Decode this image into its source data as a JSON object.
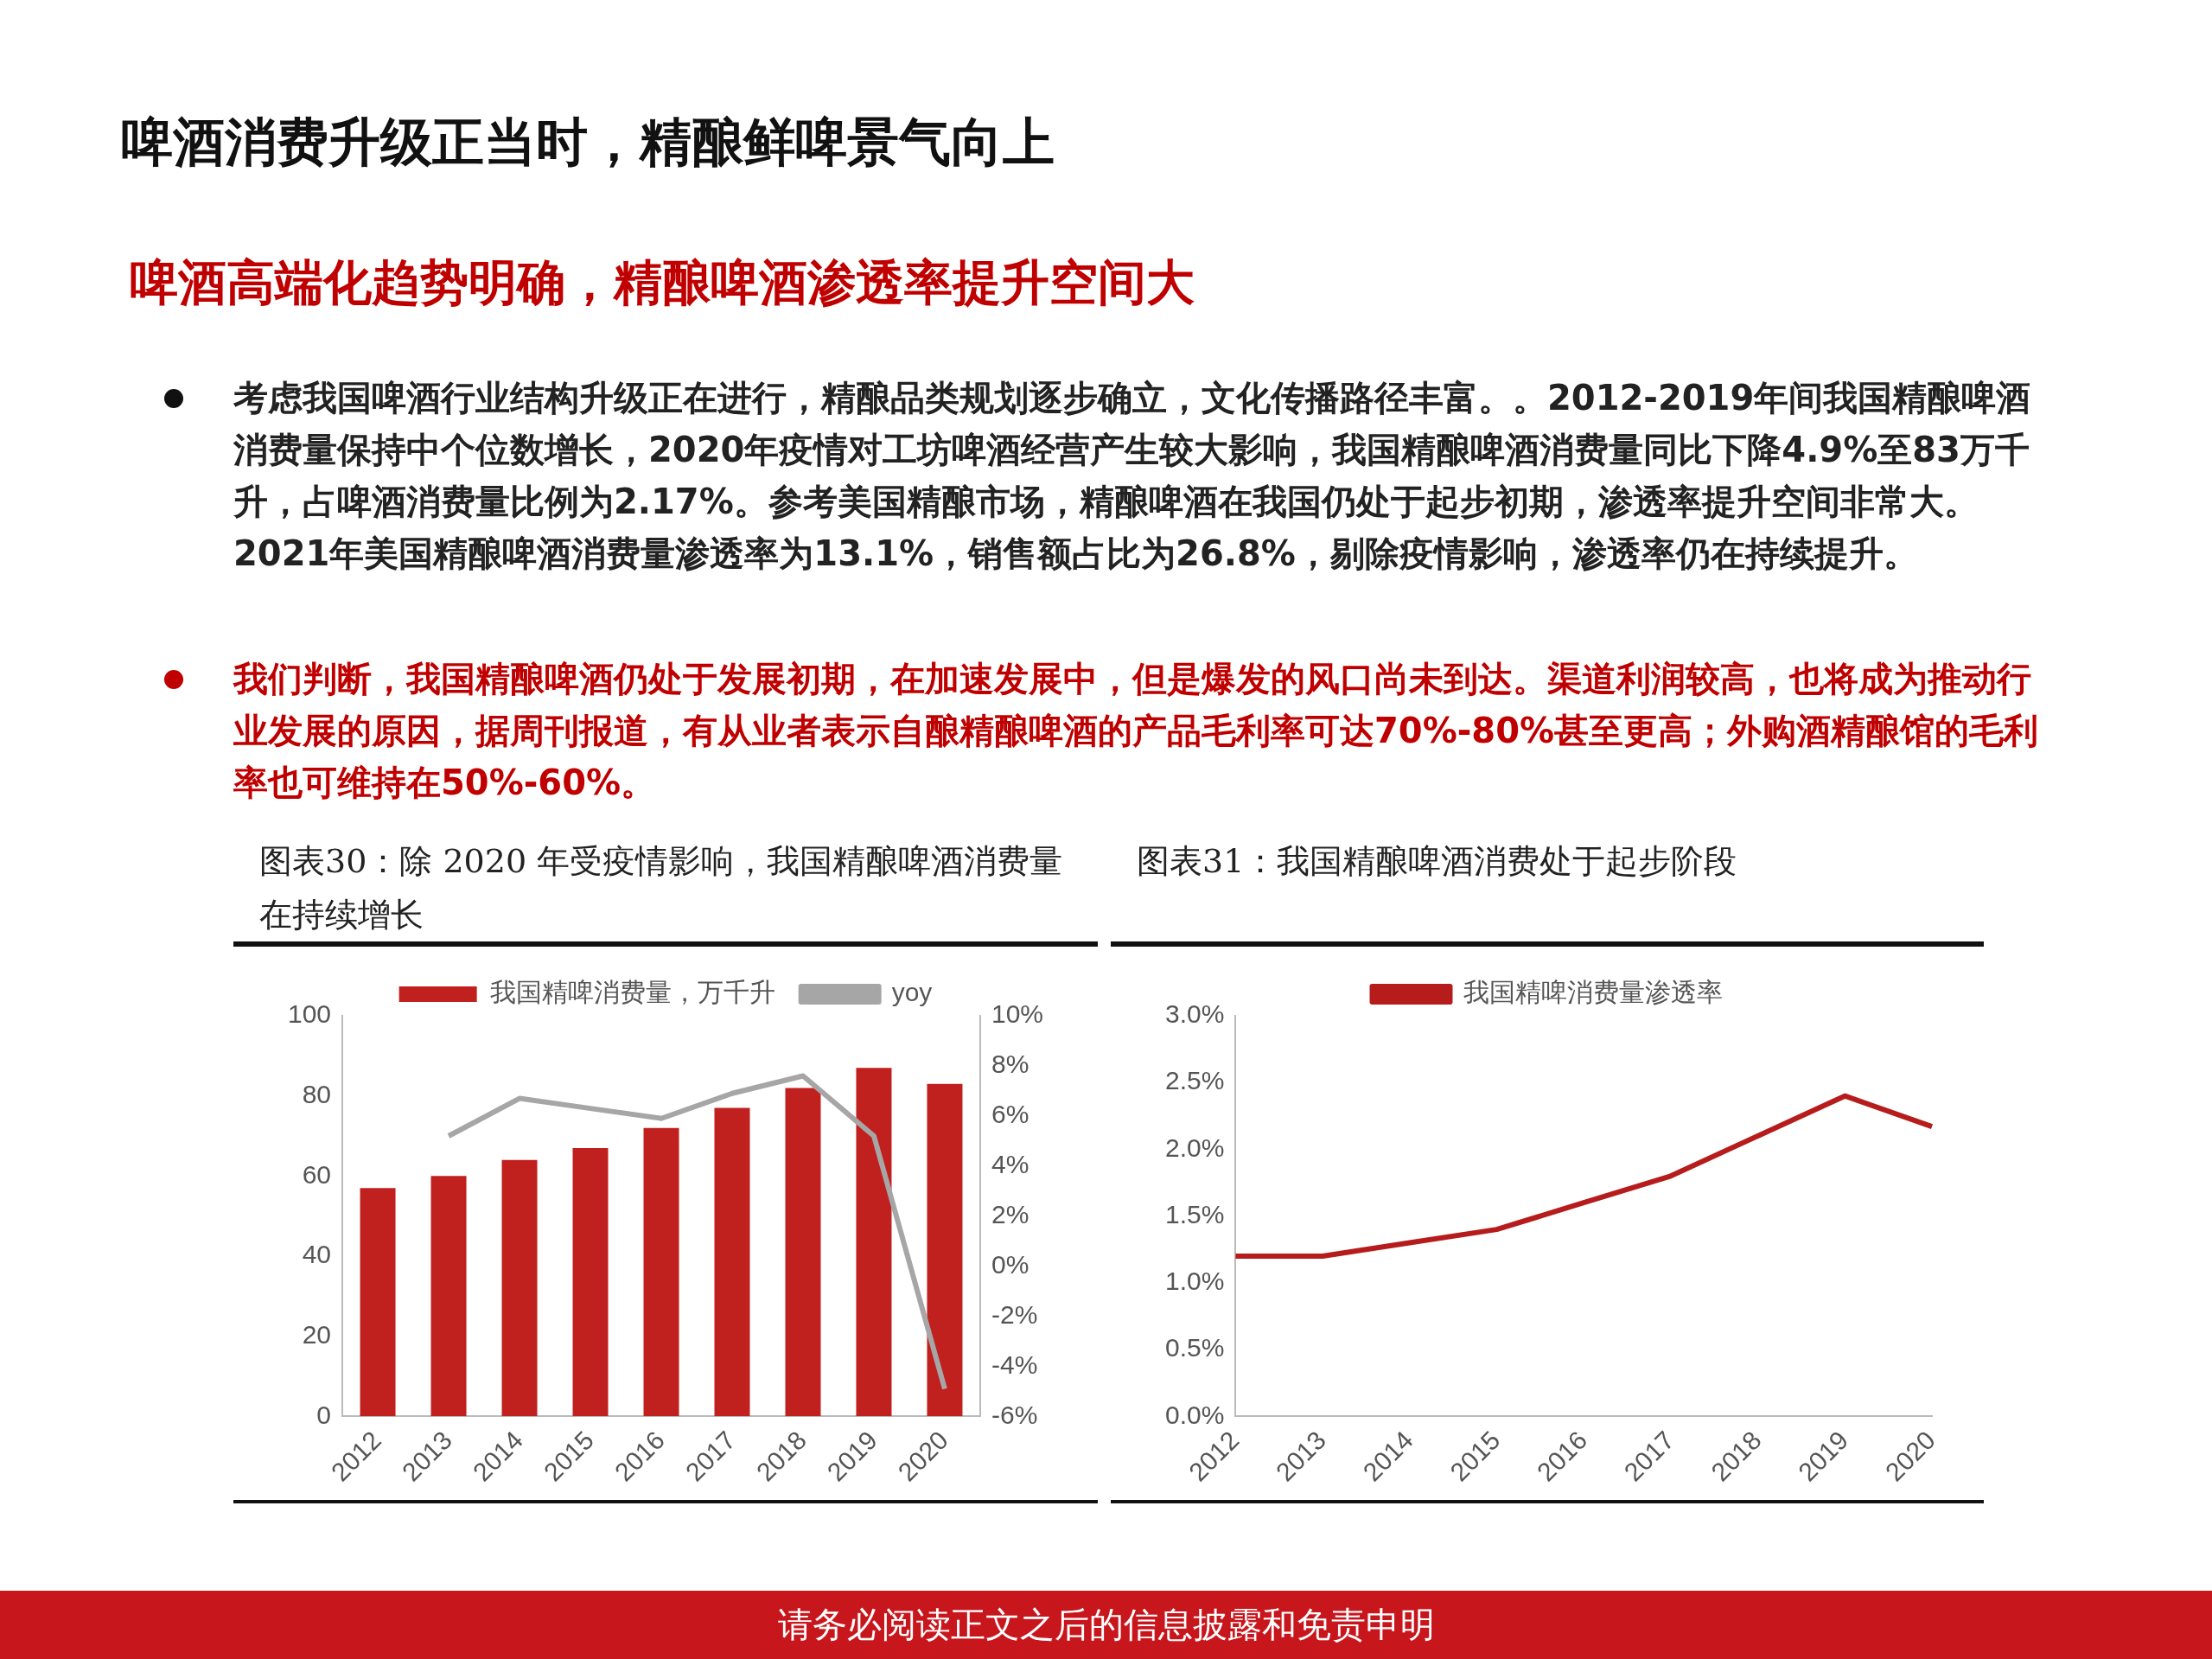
{
  "chart_data": [
    {
      "type": "bar",
      "title": "图表30：除 2020 年受疫情影响，我国精酿啤酒消费量在持续增长",
      "categories": [
        "2012",
        "2013",
        "2014",
        "2015",
        "2016",
        "2017",
        "2018",
        "2019",
        "2020"
      ],
      "series": [
        {
          "name": "我国精啤消费量，万千升",
          "type": "bar",
          "color": "#c0201e",
          "values": [
            57,
            60,
            64,
            67,
            72,
            77,
            82,
            87,
            83
          ]
        },
        {
          "name": "yoy",
          "type": "line",
          "axis": "y2",
          "color": "#a6a6a6",
          "values": [
            null,
            5.2,
            6.7,
            6.3,
            5.9,
            6.9,
            7.6,
            5.2,
            -4.9
          ]
        }
      ],
      "ylim": [
        0,
        100
      ],
      "yticks": [
        0,
        20,
        40,
        60,
        80,
        100
      ],
      "y2lim": [
        -6,
        10
      ],
      "y2ticks": [
        {
          "value": -6,
          "label": "-6%"
        },
        {
          "value": -4,
          "label": "-4%"
        },
        {
          "value": -2,
          "label": "-2%"
        },
        {
          "value": 0,
          "label": "0%"
        },
        {
          "value": 2,
          "label": "2%"
        },
        {
          "value": 4,
          "label": "4%"
        },
        {
          "value": 6,
          "label": "6%"
        },
        {
          "value": 8,
          "label": "8%"
        },
        {
          "value": 10,
          "label": "10%"
        }
      ],
      "legend": "top",
      "marker": "none",
      "annotations": [
        "啤酒消费升级正当时，精酿鲜啤景气向上",
        "啤酒高端化趋势明确，精酿啤酒渗透率提升空间大",
        "考虑我国啤酒行业结构升级正在进行，精酿品类规划逐步确立，文化传播路径丰富。。2012-2019年间我国精酿啤酒消费量保持中个位数增长，2020年疫情对工坊啤酒经营产生较大影响，我国精酿啤酒消费量同比下降4.9%至83万千升，占啤酒消费量比例为2.17%。参考美国精酿市场，精酿啤酒在我国仍处于起步初期，渗透率提升空间非常大。2021年美国精酿啤酒消费量渗透率为13.1%，销售额占比为26.8%，剔除疫情影响，渗透率仍在持续提升。",
        "我们判断，我国精酿啤酒仍处于发展初期，在加速发展中，但是爆发的风口尚未到达。渠道利润较高，也将成为推动行业发展的原因，据周刊报道，有从业者表示自酿精酿啤酒的产品毛利率可达70%-80%甚至更高；外购酒精酿馆的毛利率也可维持在50%-60%。",
        "请务必阅读正文之后的信息披露和免责申明"
      ]
    },
    {
      "type": "line",
      "title": "图表31：我国精酿啤酒消费处于起步阶段",
      "categories": [
        "2012",
        "2013",
        "2014",
        "2015",
        "2016",
        "2017",
        "2018",
        "2019",
        "2020"
      ],
      "series": [
        {
          "name": "我国精啤消费量渗透率",
          "color": "#b71c1c",
          "values": [
            1.2,
            1.2,
            1.3,
            1.4,
            1.6,
            1.8,
            2.1,
            2.4,
            2.17
          ]
        }
      ],
      "ylim": [
        0,
        3
      ],
      "yticks": [
        {
          "value": 0,
          "label": "0.0%"
        },
        {
          "value": 0.5,
          "label": "0.5%"
        },
        {
          "value": 1,
          "label": "1.0%"
        },
        {
          "value": 1.5,
          "label": "1.5%"
        },
        {
          "value": 2,
          "label": "2.0%"
        },
        {
          "value": 2.5,
          "label": "2.5%"
        },
        {
          "value": 3,
          "label": "3.0%"
        }
      ],
      "legend": "top",
      "marker": "none"
    }
  ]
}
